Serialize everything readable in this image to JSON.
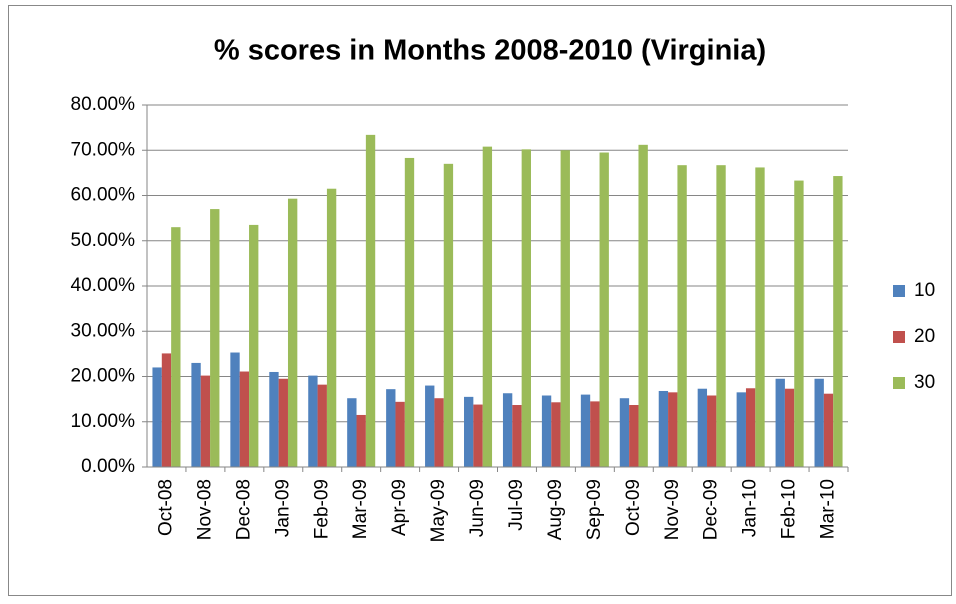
{
  "chart_data": {
    "type": "bar",
    "title": "% scores in Months 2008-2010 (Virginia)",
    "categories": [
      "Oct-08",
      "Nov-08",
      "Dec-08",
      "Jan-09",
      "Feb-09",
      "Mar-09",
      "Apr-09",
      "May-09",
      "Jun-09",
      "Jul-09",
      "Aug-09",
      "Sep-09",
      "Oct-09",
      "Nov-09",
      "Dec-09",
      "Jan-10",
      "Feb-10",
      "Mar-10"
    ],
    "series": [
      {
        "name": "10",
        "color": "#4f81bd",
        "values": [
          22,
          23,
          25.3,
          21,
          20.2,
          15.2,
          17.2,
          18,
          15.5,
          16.3,
          15.8,
          16,
          15.2,
          16.8,
          17.3,
          16.5,
          19.5,
          19.5
        ]
      },
      {
        "name": "20",
        "color": "#c0504d",
        "values": [
          25.1,
          20.2,
          21.1,
          19.5,
          18.2,
          11.5,
          14.4,
          15.2,
          13.8,
          13.7,
          14.3,
          14.5,
          13.7,
          16.5,
          15.8,
          17.4,
          17.3,
          16.2
        ]
      },
      {
        "name": "30",
        "color": "#9bbb59",
        "values": [
          53,
          57,
          53.5,
          59.3,
          61.5,
          73.4,
          68.3,
          67,
          70.8,
          70.2,
          70,
          69.5,
          71.2,
          66.7,
          66.7,
          66.2,
          63.3,
          64.3
        ]
      }
    ],
    "ylim": [
      0,
      80
    ],
    "yticks": [
      {
        "value": 0,
        "label": "0.00%"
      },
      {
        "value": 10,
        "label": "10.00%"
      },
      {
        "value": 20,
        "label": "20.00%"
      },
      {
        "value": 30,
        "label": "30.00%"
      },
      {
        "value": 40,
        "label": "40.00%"
      },
      {
        "value": 50,
        "label": "50.00%"
      },
      {
        "value": 60,
        "label": "60.00%"
      },
      {
        "value": 70,
        "label": "70.00%"
      },
      {
        "value": 80,
        "label": "80.00%"
      }
    ],
    "grid": true,
    "legend": "right"
  }
}
